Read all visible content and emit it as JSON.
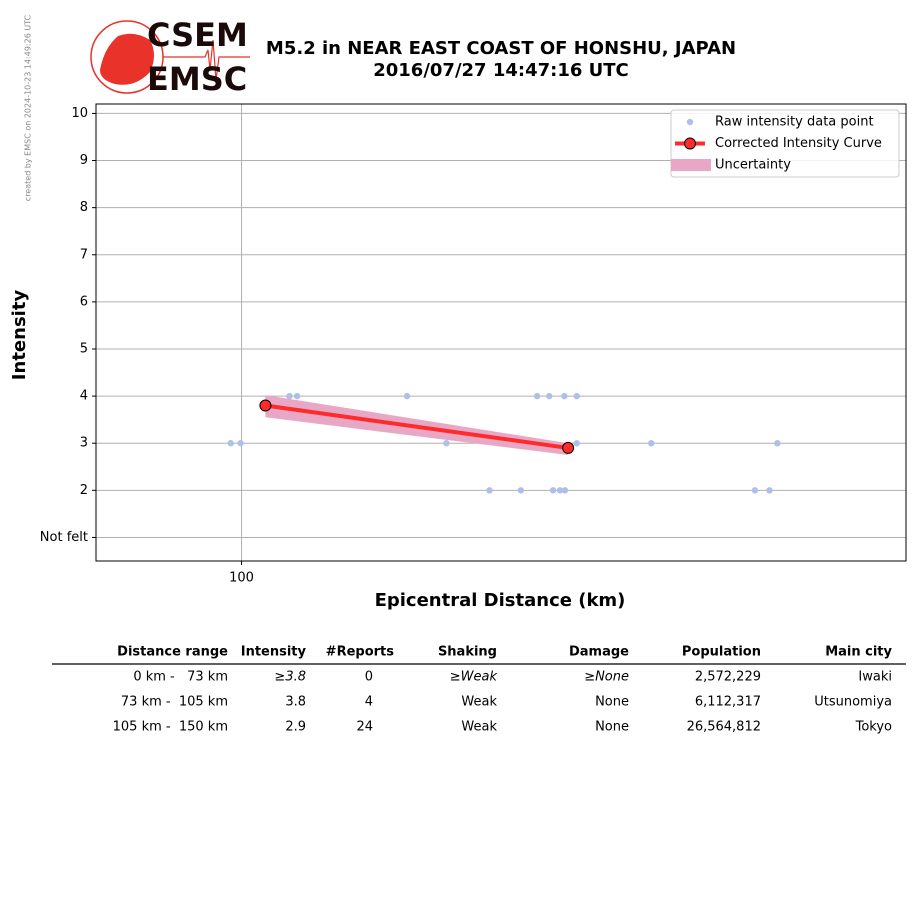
{
  "credit": "created by EMSC on 2024-10-23 14:49:26 UTC",
  "logo": {
    "top": "CSEM",
    "bottom": "EMSC"
  },
  "chart_data": {
    "type": "scatter",
    "title": "M5.2 in NEAR EAST COAST OF HONSHU, JAPAN",
    "subtitle": "2016/07/27 14:47:16 UTC",
    "xlabel": "Epicentral Distance (km)",
    "ylabel": "Intensity",
    "xscale": "log",
    "xlim": [
      85,
      210
    ],
    "xticks": [
      100
    ],
    "ylim": [
      0.5,
      10.2
    ],
    "yticks": [
      {
        "value": 1,
        "label": "Not felt"
      },
      2,
      3,
      4,
      5,
      6,
      7,
      8,
      9,
      10
    ],
    "grid": true,
    "legend": "upper right",
    "series": [
      {
        "name": "Raw intensity data point",
        "type": "scatter",
        "color": "#aebfe8",
        "x": [
          98.8,
          99.9,
          105.5,
          106.4,
          120.3,
          125.7,
          131.9,
          136.6,
          139.1,
          141.0,
          143.4,
          145.4,
          141.6,
          142.7,
          143.5,
          145.4,
          158,
          177.4,
          180.3,
          181.9
        ],
        "values": [
          3,
          3,
          4,
          4,
          4,
          3,
          2,
          2,
          4,
          4,
          4,
          4,
          2,
          2,
          2,
          3,
          3,
          2,
          2,
          3
        ]
      },
      {
        "name": "Corrected Intensity Curve",
        "type": "line",
        "color": "#ff2a2a",
        "x": [
          102.7,
          144
        ],
        "values": [
          3.8,
          2.9
        ]
      },
      {
        "name": "Uncertainty",
        "type": "band",
        "color": "#e8a7c4",
        "x": [
          102.7,
          144
        ],
        "upper": [
          4.02,
          3.0
        ],
        "lower": [
          3.55,
          2.75
        ]
      }
    ]
  },
  "table": {
    "header": [
      "Distance range",
      "Intensity",
      "#Reports",
      "Shaking",
      "Damage",
      "Population",
      "Main city"
    ],
    "rows": [
      [
        "0 km -   73 km",
        "≥3.8",
        "0",
        "≥Weak",
        "≥None",
        "2,572,229",
        "Iwaki"
      ],
      [
        "73 km -  105 km",
        "3.8",
        "4",
        "Weak",
        "None",
        "6,112,317",
        "Utsunomiya"
      ],
      [
        "105 km -  150 km",
        "2.9",
        "24",
        "Weak",
        "None",
        "26,564,812",
        "Tokyo"
      ]
    ]
  }
}
